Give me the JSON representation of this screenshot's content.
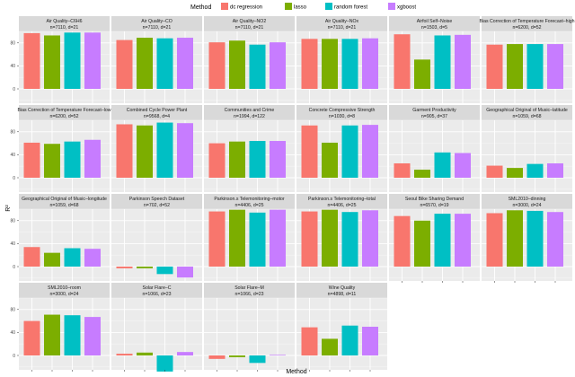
{
  "chart_data": {
    "type": "bar",
    "xlabel": "Method",
    "ylabel": "R²",
    "ylim": [
      -25,
      100
    ],
    "y_ticks": [
      0,
      40,
      80
    ],
    "y_tick_labels": [
      "0",
      "40",
      "80"
    ],
    "grid": true,
    "legend_title": "Method",
    "legend_position": "top",
    "methods": [
      {
        "name": "dc regression",
        "color": "#F8766D"
      },
      {
        "name": "lasso",
        "color": "#7CAE00"
      },
      {
        "name": "random forest",
        "color": "#00BFC4"
      },
      {
        "name": "xgboost",
        "color": "#C77CFF"
      }
    ],
    "panels": [
      {
        "title": "Air Quality–C6H6",
        "subtitle": "n=7110, d=21",
        "values": [
          97,
          93,
          98,
          98
        ]
      },
      {
        "title": "Air Quality–CO",
        "subtitle": "n=7110, d=21",
        "values": [
          85,
          89,
          88,
          89
        ]
      },
      {
        "title": "Air Quality–NO2",
        "subtitle": "n=7110, d=21",
        "values": [
          81,
          84,
          77,
          81
        ]
      },
      {
        "title": "Air Quality–NOx",
        "subtitle": "n=7110, d=21",
        "values": [
          87,
          87,
          87,
          88
        ]
      },
      {
        "title": "Airfoil Self–Noise",
        "subtitle": "n=1503, d=5",
        "values": [
          95,
          51,
          93,
          94
        ]
      },
      {
        "title": "Bias Correction of Temperature Forecast–high",
        "subtitle": "n=6200, d=52",
        "values": [
          77,
          78,
          78,
          78
        ]
      },
      {
        "title": "Bias Correction of Temperature Forecast–low",
        "subtitle": "n=6200, d=52",
        "values": [
          61,
          59,
          63,
          66
        ]
      },
      {
        "title": "Combined Cycle Power Plant",
        "subtitle": "n=9568, d=4",
        "values": [
          93,
          91,
          96,
          95
        ]
      },
      {
        "title": "Communities and Crime",
        "subtitle": "n=1994, d=122",
        "values": [
          60,
          63,
          64,
          64
        ]
      },
      {
        "title": "Concrete Compressive Strength",
        "subtitle": "n=1030, d=8",
        "values": [
          91,
          61,
          91,
          92
        ]
      },
      {
        "title": "Garment Productivity",
        "subtitle": "n=905, d=37",
        "values": [
          25,
          14,
          44,
          43
        ]
      },
      {
        "title": "Geographical Original of Music–latitude",
        "subtitle": "n=1059, d=68",
        "values": [
          21,
          17,
          24,
          25
        ]
      },
      {
        "title": "Geographical Original of Music–longitude",
        "subtitle": "n=1059, d=68",
        "values": [
          34,
          24,
          32,
          31
        ]
      },
      {
        "title": "Parkinson Speech Dataset",
        "subtitle": "n=702, d=52",
        "values": [
          -3,
          -3,
          -13,
          -19
        ]
      },
      {
        "title": "Parkinson.s Telemonitoring–motor",
        "subtitle": "n=4406, d=25",
        "values": [
          96,
          99,
          94,
          99
        ]
      },
      {
        "title": "Parkinson.s Telemonitoring–total",
        "subtitle": "n=4406, d=25",
        "values": [
          96,
          99,
          95,
          98
        ]
      },
      {
        "title": "Seoul Bike Sharing Demand",
        "subtitle": "n=6570, d=19",
        "values": [
          88,
          80,
          92,
          92
        ]
      },
      {
        "title": "SML2010–dinning",
        "subtitle": "n=3000, d=24",
        "values": [
          93,
          98,
          97,
          95
        ]
      },
      {
        "title": "SML2010–room",
        "subtitle": "n=3000, d=24",
        "values": [
          60,
          71,
          70,
          67
        ]
      },
      {
        "title": "Solar Flare–C",
        "subtitle": "n=1066, d=23",
        "values": [
          3,
          5,
          -28,
          6
        ]
      },
      {
        "title": "Solar Flare–M",
        "subtitle": "n=1066, d=23",
        "values": [
          -6,
          -3,
          -13,
          1
        ]
      },
      {
        "title": "Wine Quality",
        "subtitle": "n=4898, d=11",
        "values": [
          49,
          29,
          52,
          50
        ]
      }
    ]
  }
}
